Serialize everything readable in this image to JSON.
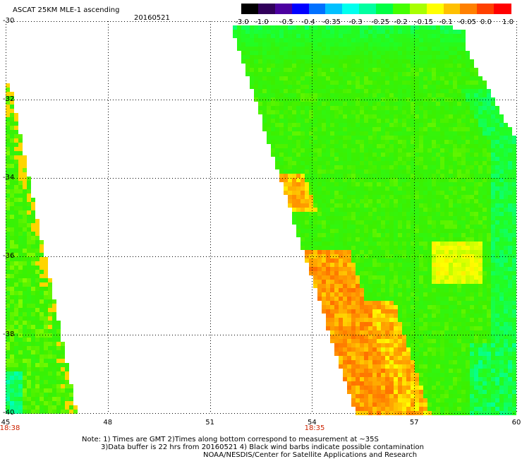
{
  "header": {
    "title": "ASCAT 25KM MLE-1 ascending",
    "date": "20160521"
  },
  "colorbar": {
    "labels": [
      "-3.0",
      "-1.0",
      "-0.5",
      "-0.4",
      "-0.35",
      "-0.3",
      "-0.25",
      "-0.2",
      "-0.15",
      "-0.1",
      "-0.05",
      "0.0",
      "1.0"
    ],
    "colors": [
      "#000000",
      "#30005a",
      "#4b00a0",
      "#0000ff",
      "#0070ff",
      "#00c0ff",
      "#00ffee",
      "#00ffa0",
      "#00ff44",
      "#44ff00",
      "#a8ff00",
      "#ffff00",
      "#ffc000",
      "#ff8000",
      "#ff4000",
      "#ff0000"
    ]
  },
  "map": {
    "lat_labels": [
      "-30",
      "-32",
      "-34",
      "-36",
      "-38",
      "-40"
    ],
    "lon_labels": [
      "45",
      "48",
      "51",
      "54",
      "57",
      "60"
    ],
    "time_labels": [
      "18:38",
      "18:35"
    ],
    "lat_range": [
      -40,
      -30
    ],
    "lon_range": [
      45,
      60
    ]
  },
  "notes": {
    "line1": "Note: 1) Times are GMT 2)Times along bottom correspond to measurement at ~35S",
    "line2": "3)Data buffer is 22 hrs from 20160521 4) Black wind barbs indicate possible contamination",
    "line3": "NOAA/NESDIS/Center for Satellite Applications and Research"
  }
}
